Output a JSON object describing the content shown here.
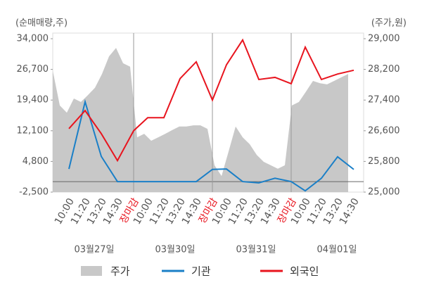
{
  "chart_data": {
    "type": "line",
    "y_label": "(순매매량,주)",
    "y2_label": "(주가,원)",
    "categories": [
      "10:00",
      "11:20",
      "13:20",
      "14:30",
      "장마감",
      "10:00",
      "11:20",
      "13:20",
      "14:30",
      "장마감",
      "10:00",
      "11:20",
      "13:20",
      "14:30",
      "장마감",
      "10:00",
      "11:20",
      "13:20",
      "14:30"
    ],
    "dates": [
      "03월27일",
      "03월30일",
      "03월31일",
      "04월01일"
    ],
    "ylim": [
      -2500,
      34000
    ],
    "yticks": [
      {
        "value": 34000,
        "label": "34,000"
      },
      {
        "value": 26700,
        "label": "26,700"
      },
      {
        "value": 19400,
        "label": "19,400"
      },
      {
        "value": 12100,
        "label": "12,100"
      },
      {
        "value": 4800,
        "label": "4,800"
      },
      {
        "value": -2500,
        "label": "-2,500"
      }
    ],
    "y2lim": [
      25000,
      29000
    ],
    "y2ticks": [
      {
        "value": 29000,
        "label": "29,000"
      },
      {
        "value": 28200,
        "label": "28,200"
      },
      {
        "value": 27400,
        "label": "27,400"
      },
      {
        "value": 26600,
        "label": "26,600"
      },
      {
        "value": 25800,
        "label": "25,800"
      },
      {
        "value": 25000,
        "label": "25,000"
      }
    ],
    "price": {
      "name": "주가",
      "color": "#c8c8c8",
      "axis": "y2",
      "values": [
        28170,
        27260,
        27070,
        27440,
        27350,
        27530,
        27720,
        28080,
        28540,
        28760,
        28360,
        28270,
        26430,
        26520,
        26340,
        26430,
        26520,
        26620,
        26710,
        26710,
        26740,
        26740,
        26650,
        25700,
        25420,
        26060,
        26710,
        26430,
        26250,
        25970,
        25790,
        25700,
        25610,
        25700,
        27260,
        27350,
        27620,
        27900,
        27840,
        27810,
        27900,
        27990,
        28080
      ]
    },
    "series": [
      {
        "name": "기관",
        "color": "#1a7fc7",
        "values": [
          3000,
          19000,
          6000,
          0,
          0,
          0,
          0,
          0,
          0,
          2900,
          3000,
          0,
          -300,
          800,
          0,
          -2200,
          800,
          5900,
          2900
        ]
      },
      {
        "name": "외국인",
        "color": "#e8141e",
        "values": [
          12600,
          16900,
          11400,
          5000,
          12100,
          15200,
          15200,
          24500,
          28500,
          19400,
          27800,
          33700,
          24300,
          24800,
          23300,
          32000,
          24300,
          25600,
          26500
        ]
      }
    ]
  }
}
